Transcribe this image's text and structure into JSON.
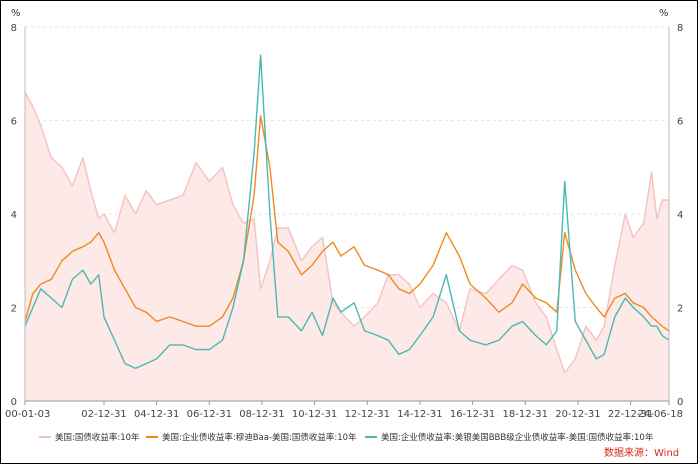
{
  "chart_data": {
    "type": "line",
    "y_unit_left": "%",
    "y_unit_right": "%",
    "ylim": [
      0,
      8
    ],
    "y_ticks": [
      "0",
      "2",
      "4",
      "6",
      "8"
    ],
    "x_ticks": [
      "00-01-03",
      "02-12-31",
      "04-12-31",
      "06-12-31",
      "08-12-31",
      "10-12-31",
      "12-12-31",
      "14-12-31",
      "16-12-31",
      "18-12-31",
      "20-12-31",
      "22-12-31",
      "24-06-18"
    ],
    "x_tick_years": [
      2000.0,
      2003.0,
      2005.0,
      2007.0,
      2009.0,
      2011.0,
      2013.0,
      2015.0,
      2017.0,
      2019.0,
      2021.0,
      2023.0,
      2024.46
    ],
    "xlim": [
      2000.0,
      2024.46
    ],
    "grid": true,
    "legend_position": "bottom",
    "source_note": "数据来源：Wind",
    "series": [
      {
        "name": "美国:国债收益率:10年",
        "color": "#f4c2c2",
        "fill": "#fde9e8",
        "x": [
          2000.0,
          2000.3,
          2000.6,
          2001.0,
          2001.4,
          2001.8,
          2002.2,
          2002.5,
          2002.8,
          2003.0,
          2003.4,
          2003.8,
          2004.2,
          2004.6,
          2005.0,
          2005.5,
          2006.0,
          2006.5,
          2007.0,
          2007.5,
          2007.9,
          2008.3,
          2008.7,
          2008.95,
          2009.3,
          2009.6,
          2010.0,
          2010.5,
          2010.9,
          2011.3,
          2011.7,
          2012.0,
          2012.5,
          2012.9,
          2013.4,
          2013.8,
          2014.2,
          2014.6,
          2015.0,
          2015.5,
          2016.0,
          2016.5,
          2016.9,
          2017.5,
          2018.0,
          2018.5,
          2018.9,
          2019.4,
          2019.8,
          2020.2,
          2020.5,
          2020.9,
          2021.3,
          2021.7,
          2022.0,
          2022.4,
          2022.8,
          2023.1,
          2023.5,
          2023.8,
          2024.0,
          2024.2,
          2024.46
        ],
        "values": [
          6.6,
          6.3,
          5.9,
          5.2,
          5.0,
          4.6,
          5.2,
          4.5,
          3.9,
          4.0,
          3.6,
          4.4,
          4.0,
          4.5,
          4.2,
          4.3,
          4.4,
          5.1,
          4.7,
          5.0,
          4.2,
          3.8,
          3.9,
          2.4,
          3.0,
          3.7,
          3.7,
          3.0,
          3.3,
          3.5,
          2.1,
          1.9,
          1.6,
          1.8,
          2.1,
          2.7,
          2.7,
          2.5,
          2.0,
          2.3,
          2.1,
          1.5,
          2.4,
          2.3,
          2.6,
          2.9,
          2.8,
          2.1,
          1.8,
          1.1,
          0.6,
          0.9,
          1.6,
          1.3,
          1.6,
          2.9,
          4.0,
          3.5,
          3.8,
          4.9,
          3.9,
          4.3,
          4.3
        ]
      },
      {
        "name": "美国:企业债收益率:穆迪Baa-美国:国债收益率:10年",
        "color": "#ee8a1e",
        "x": [
          2000.0,
          2000.3,
          2000.6,
          2001.0,
          2001.4,
          2001.8,
          2002.2,
          2002.5,
          2002.8,
          2003.0,
          2003.4,
          2003.8,
          2004.2,
          2004.6,
          2005.0,
          2005.5,
          2006.0,
          2006.5,
          2007.0,
          2007.5,
          2007.9,
          2008.3,
          2008.7,
          2008.95,
          2009.3,
          2009.6,
          2010.0,
          2010.5,
          2010.9,
          2011.3,
          2011.7,
          2012.0,
          2012.5,
          2012.9,
          2013.4,
          2013.8,
          2014.2,
          2014.6,
          2015.0,
          2015.5,
          2016.0,
          2016.5,
          2016.9,
          2017.5,
          2018.0,
          2018.5,
          2018.9,
          2019.4,
          2019.8,
          2020.2,
          2020.5,
          2020.9,
          2021.3,
          2021.7,
          2022.0,
          2022.4,
          2022.8,
          2023.1,
          2023.5,
          2023.8,
          2024.0,
          2024.2,
          2024.46
        ],
        "values": [
          1.7,
          2.3,
          2.5,
          2.6,
          3.0,
          3.2,
          3.3,
          3.4,
          3.6,
          3.4,
          2.8,
          2.4,
          2.0,
          1.9,
          1.7,
          1.8,
          1.7,
          1.6,
          1.6,
          1.8,
          2.2,
          3.0,
          4.4,
          6.1,
          5.0,
          3.4,
          3.2,
          2.7,
          2.9,
          3.2,
          3.4,
          3.1,
          3.3,
          2.9,
          2.8,
          2.7,
          2.4,
          2.3,
          2.5,
          2.9,
          3.6,
          3.1,
          2.5,
          2.2,
          1.9,
          2.1,
          2.5,
          2.2,
          2.1,
          1.9,
          3.6,
          2.8,
          2.3,
          2.0,
          1.8,
          2.2,
          2.3,
          2.1,
          2.0,
          1.8,
          1.7,
          1.6,
          1.5
        ]
      },
      {
        "name": "美国:企业债收益率:美银美国BBB级企业债收益率-美国:国债收益率:10年",
        "color": "#4cb8b4",
        "x": [
          2000.0,
          2000.3,
          2000.6,
          2001.0,
          2001.4,
          2001.8,
          2002.2,
          2002.5,
          2002.8,
          2003.0,
          2003.4,
          2003.8,
          2004.2,
          2004.6,
          2005.0,
          2005.5,
          2006.0,
          2006.5,
          2007.0,
          2007.5,
          2007.9,
          2008.3,
          2008.7,
          2008.95,
          2009.3,
          2009.6,
          2010.0,
          2010.5,
          2010.9,
          2011.3,
          2011.7,
          2012.0,
          2012.5,
          2012.9,
          2013.4,
          2013.8,
          2014.2,
          2014.6,
          2015.0,
          2015.5,
          2016.0,
          2016.5,
          2016.9,
          2017.5,
          2018.0,
          2018.5,
          2018.9,
          2019.4,
          2019.8,
          2020.2,
          2020.5,
          2020.9,
          2021.3,
          2021.7,
          2022.0,
          2022.4,
          2022.8,
          2023.1,
          2023.5,
          2023.8,
          2024.0,
          2024.2,
          2024.46
        ],
        "values": [
          1.6,
          2.0,
          2.4,
          2.2,
          2.0,
          2.6,
          2.8,
          2.5,
          2.7,
          1.8,
          1.3,
          0.8,
          0.7,
          0.8,
          0.9,
          1.2,
          1.2,
          1.1,
          1.1,
          1.3,
          2.0,
          3.0,
          5.3,
          7.4,
          4.0,
          1.8,
          1.8,
          1.5,
          1.9,
          1.4,
          2.2,
          1.9,
          2.1,
          1.5,
          1.4,
          1.3,
          1.0,
          1.1,
          1.4,
          1.8,
          2.7,
          1.5,
          1.3,
          1.2,
          1.3,
          1.6,
          1.7,
          1.4,
          1.2,
          1.5,
          4.7,
          1.7,
          1.3,
          0.9,
          1.0,
          1.8,
          2.2,
          2.0,
          1.8,
          1.6,
          1.6,
          1.4,
          1.3
        ]
      }
    ]
  }
}
